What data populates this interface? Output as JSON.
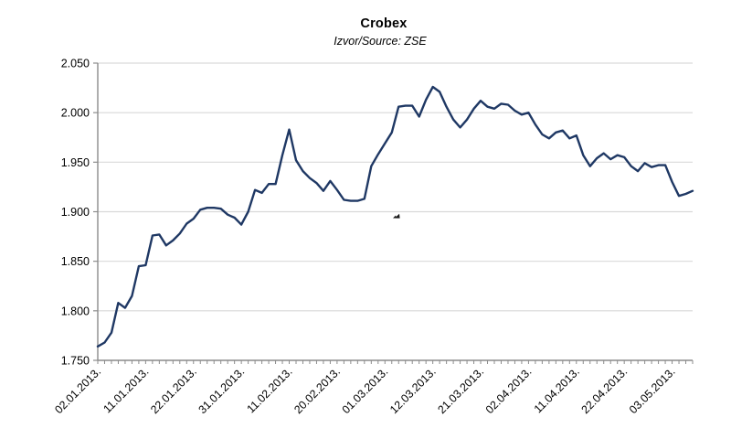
{
  "page": {
    "background_color": "#ffffff"
  },
  "chart_data": {
    "type": "line",
    "title": "Crobex",
    "subtitle": "Izvor/Source: ZSE",
    "source": "ZSE",
    "ylim": [
      1.75,
      2.05
    ],
    "y_tick_step": 0.05,
    "y_tick_labels": [
      "1.750",
      "1.800",
      "1.850",
      "1.900",
      "1.950",
      "2.000",
      "2.050"
    ],
    "x_tick_labels": [
      "02.01.2013.",
      "11.01.2013.",
      "22.01.2013.",
      "31.01.2013.",
      "11.02.2013.",
      "20.02.2013.",
      "01.03.2013.",
      "12.03.2013.",
      "21.03.2013.",
      "02.04.2013.",
      "11.04.2013.",
      "22.04.2013.",
      "03.05.2013."
    ],
    "x_tick_indices": [
      0,
      7,
      14,
      21,
      28,
      35,
      42,
      49,
      56,
      63,
      70,
      77,
      84
    ],
    "grid": true,
    "legend_position": "none",
    "line_color": "#1f3864",
    "grid_color": "#d9d9d9",
    "axis_color": "#8c8c8c",
    "text_color": "#000000",
    "artifact": {
      "shape": "smudge",
      "x": 430,
      "y": 236,
      "color": "#1a1a1a"
    },
    "series": [
      {
        "name": "Crobex",
        "values": [
          1.764,
          1.768,
          1.778,
          1.808,
          1.803,
          1.815,
          1.845,
          1.846,
          1.876,
          1.877,
          1.866,
          1.871,
          1.878,
          1.888,
          1.893,
          1.902,
          1.904,
          1.904,
          1.903,
          1.897,
          1.894,
          1.887,
          1.9,
          1.922,
          1.919,
          1.928,
          1.928,
          1.957,
          1.983,
          1.952,
          1.941,
          1.934,
          1.929,
          1.921,
          1.931,
          1.922,
          1.912,
          1.911,
          1.911,
          1.913,
          1.946,
          1.958,
          1.969,
          1.98,
          2.006,
          2.007,
          2.007,
          1.996,
          2.013,
          2.026,
          2.021,
          2.006,
          1.993,
          1.985,
          1.993,
          2.004,
          2.012,
          2.006,
          2.004,
          2.009,
          2.008,
          2.002,
          1.998,
          2.0,
          1.988,
          1.978,
          1.974,
          1.98,
          1.982,
          1.974,
          1.977,
          1.957,
          1.946,
          1.954,
          1.959,
          1.953,
          1.957,
          1.955,
          1.946,
          1.941,
          1.949,
          1.945,
          1.947,
          1.947,
          1.93,
          1.916,
          1.918,
          1.921
        ]
      }
    ]
  }
}
